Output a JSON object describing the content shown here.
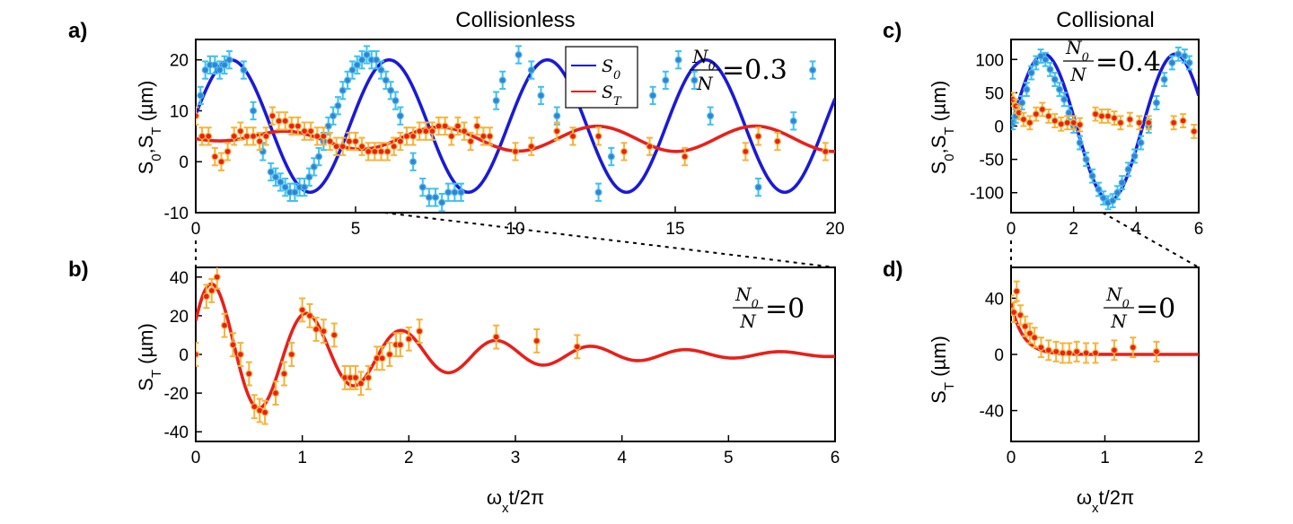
{
  "chart_data": [
    {
      "id": "a",
      "panel_label": "a)",
      "title": "Collisionless",
      "type": "scatter+line",
      "xlim": [
        0,
        20
      ],
      "ylim": [
        -10,
        24
      ],
      "xticks": [
        0,
        5,
        10,
        15,
        20
      ],
      "yticks": [
        -10,
        0,
        10,
        20
      ],
      "ylabel": "S0,ST (µm)",
      "annotation": {
        "lhs_num": "N",
        "lhs_num_sub": "0",
        "lhs_den": "N",
        "value": "=0.3"
      },
      "legend": [
        {
          "name": "S",
          "sub": "0",
          "color": "#1a1ad6"
        },
        {
          "name": "S",
          "sub": "T",
          "color": "#e8201a"
        }
      ],
      "series": [
        {
          "name": "S0 fit",
          "kind": "line",
          "color": "#1a1ad6",
          "model": {
            "type": "cos",
            "center": 7,
            "amplitude": 13,
            "period": 4.95
          }
        },
        {
          "name": "ST fit",
          "kind": "line",
          "color": "#e8201a",
          "model": {
            "type": "growcos",
            "center": 4.5,
            "amplitude": 2.5,
            "period": 4.95,
            "phase": 3.1,
            "rise": 3.0
          }
        },
        {
          "name": "S0 data",
          "kind": "points",
          "fill": "#3a7fd0",
          "err_color": "#3fc0f0",
          "yerr": 1.7,
          "x": [
            0.15,
            0.3,
            0.45,
            0.6,
            0.75,
            0.9,
            1.05,
            1.5,
            1.8,
            2.1,
            2.35,
            2.5,
            2.65,
            2.8,
            2.95,
            3.1,
            3.25,
            3.4,
            3.55,
            3.7,
            3.85,
            4.0,
            4.15,
            4.3,
            4.45,
            4.6,
            4.75,
            4.9,
            5.05,
            5.2,
            5.35,
            5.5,
            5.65,
            5.8,
            5.95,
            6.1,
            6.25,
            6.4,
            6.6,
            6.8,
            7.1,
            7.3,
            7.5,
            7.7,
            7.9,
            8.1,
            8.3,
            9.4,
            9.6,
            10.1,
            10.5,
            10.8,
            11.3,
            12.6,
            13.0,
            14.3,
            14.7,
            15.1,
            15.6,
            16.1,
            17.6,
            18.7,
            19.3
          ],
          "y": [
            13,
            18,
            19,
            19,
            18,
            19,
            20,
            18,
            10,
            2,
            -2,
            -3,
            -4,
            -5,
            -6,
            -6,
            -5,
            -5,
            -3,
            -1,
            1,
            4,
            7,
            9,
            11,
            14,
            16,
            18,
            19,
            20,
            21,
            20,
            20,
            18,
            16,
            14,
            12,
            9,
            5,
            0,
            -5,
            -7,
            -7,
            -8,
            -6,
            -6,
            -6,
            12,
            16,
            21,
            18,
            13,
            9,
            -6,
            1,
            13,
            16,
            20,
            16,
            9,
            -5,
            8,
            18
          ]
        },
        {
          "name": "ST data",
          "kind": "points",
          "fill": "#e8201a",
          "err_color": "#f5b33a",
          "yerr": 1.7,
          "x": [
            0,
            0.2,
            0.4,
            0.6,
            0.8,
            1.0,
            1.2,
            1.4,
            1.6,
            1.8,
            2.0,
            2.2,
            2.4,
            2.6,
            2.8,
            3.0,
            3.2,
            3.4,
            3.6,
            3.8,
            4.0,
            4.2,
            4.4,
            4.6,
            4.8,
            5.0,
            5.2,
            5.4,
            5.6,
            5.8,
            6.0,
            6.2,
            6.4,
            6.6,
            6.8,
            7.0,
            7.2,
            7.4,
            7.6,
            7.8,
            8.0,
            8.2,
            8.4,
            8.6,
            8.8,
            9.0,
            9.2,
            10.0,
            10.5,
            11.3,
            11.8,
            12.6,
            13.4,
            14.2,
            15.3,
            17.2,
            17.6,
            18.2,
            19.7
          ],
          "y": [
            9,
            5,
            5,
            1,
            0,
            2,
            5,
            6,
            5,
            5,
            4,
            5,
            9,
            8,
            8,
            7,
            7,
            6,
            6,
            5,
            5,
            4,
            3,
            3,
            4,
            4,
            3,
            2,
            2,
            2,
            2,
            3,
            4,
            5,
            5,
            6,
            6,
            6,
            7,
            7,
            5,
            7,
            6,
            4,
            7,
            5,
            5,
            2,
            3,
            6,
            5,
            5,
            2,
            3,
            1,
            2,
            5,
            4,
            2
          ]
        }
      ]
    },
    {
      "id": "b",
      "panel_label": "b)",
      "type": "scatter+line",
      "xlim": [
        0,
        6
      ],
      "ylim": [
        -45,
        45
      ],
      "xticks": [
        0,
        1,
        2,
        3,
        4,
        5,
        6
      ],
      "yticks": [
        -40,
        -20,
        0,
        20,
        40
      ],
      "xlabel": "ωxt/2π",
      "ylabel": "ST (µm)",
      "annotation": {
        "lhs_num": "N",
        "lhs_num_sub": "0",
        "lhs_den": "N",
        "value": "=0"
      },
      "series": [
        {
          "name": "ST fit",
          "kind": "line",
          "color": "#e8201a",
          "model": {
            "type": "dampcos",
            "amplitude": 40,
            "decay": 1.65,
            "period": 0.89,
            "phase": 1.18
          }
        },
        {
          "name": "ST data",
          "kind": "points",
          "fill": "#e8201a",
          "err_color": "#f5b33a",
          "yerr": 6,
          "x": [
            0.0,
            0.1,
            0.15,
            0.2,
            0.27,
            0.35,
            0.42,
            0.5,
            0.55,
            0.6,
            0.65,
            0.75,
            0.83,
            0.9,
            1.0,
            1.07,
            1.13,
            1.2,
            1.3,
            1.4,
            1.45,
            1.5,
            1.55,
            1.62,
            1.7,
            1.75,
            1.82,
            1.88,
            1.92,
            2.0,
            2.1,
            2.82,
            3.2,
            3.58
          ],
          "y": [
            0,
            30,
            33,
            40,
            15,
            5,
            0,
            -10,
            -27,
            -29,
            -30,
            -20,
            -10,
            0,
            23,
            20,
            13,
            12,
            10,
            -12,
            -12,
            -12,
            -15,
            -12,
            -2,
            -2,
            0,
            5,
            5,
            8,
            12,
            9,
            7,
            4
          ]
        }
      ]
    },
    {
      "id": "c",
      "panel_label": "c)",
      "title": "Collisional",
      "type": "scatter+line",
      "xlim": [
        0,
        6
      ],
      "ylim": [
        -130,
        130
      ],
      "xticks": [
        0,
        2,
        4,
        6
      ],
      "yticks": [
        -100,
        -50,
        0,
        50,
        100
      ],
      "ylabel": "S0,ST (µm)",
      "annotation": {
        "lhs_num": "N",
        "lhs_num_sub": "0",
        "lhs_den": "N",
        "value": "=0.4"
      },
      "series": [
        {
          "name": "S0 fit",
          "kind": "line",
          "color": "#1a1ad6",
          "model": {
            "type": "cos",
            "center": -2,
            "amplitude": 110,
            "period": 4.2,
            "shift": 1.05,
            "x_from": 0
          }
        },
        {
          "name": "S0 data",
          "kind": "points",
          "fill": "#3a7fd0",
          "err_color": "#3fc0f0",
          "yerr": 10,
          "x": [
            0.05,
            0.15,
            0.25,
            0.35,
            0.5,
            0.65,
            0.8,
            0.95,
            1.1,
            1.25,
            1.4,
            1.55,
            1.7,
            1.85,
            2.0,
            2.2,
            2.4,
            2.6,
            2.8,
            2.95,
            3.1,
            3.25,
            3.4,
            3.55,
            3.75,
            3.95,
            4.15,
            4.4,
            4.65,
            4.9,
            5.15,
            5.35,
            5.55,
            5.7
          ],
          "y": [
            5,
            15,
            20,
            35,
            55,
            80,
            95,
            105,
            100,
            85,
            70,
            55,
            40,
            20,
            0,
            -25,
            -50,
            -75,
            -95,
            -108,
            -115,
            -112,
            -100,
            -85,
            -65,
            -45,
            -25,
            0,
            35,
            70,
            95,
            108,
            105,
            95
          ]
        },
        {
          "name": "ST data",
          "kind": "points",
          "fill": "#e8201a",
          "err_color": "#f5b33a",
          "yerr": 10,
          "x": [
            0.05,
            0.15,
            0.25,
            0.4,
            0.6,
            0.8,
            1.0,
            1.2,
            1.4,
            1.6,
            1.8,
            2.0,
            2.2,
            2.7,
            2.9,
            3.1,
            3.3,
            3.5,
            3.8,
            4.1,
            4.4,
            5.2,
            5.5,
            5.85
          ],
          "y": [
            40,
            30,
            20,
            10,
            5,
            18,
            25,
            15,
            8,
            3,
            5,
            5,
            2,
            18,
            15,
            15,
            12,
            5,
            10,
            5,
            5,
            5,
            8,
            -8
          ]
        }
      ]
    },
    {
      "id": "d",
      "panel_label": "d)",
      "type": "scatter+line",
      "xlim": [
        0,
        2
      ],
      "ylim": [
        -62,
        62
      ],
      "xticks": [
        0,
        1,
        2
      ],
      "yticks": [
        -40,
        0,
        40
      ],
      "xlabel": "ωxt/2π",
      "ylabel": "ST (µm)",
      "annotation": {
        "lhs_num": "N",
        "lhs_num_sub": "0",
        "lhs_den": "N",
        "value": "=0"
      },
      "series": [
        {
          "name": "ST fit",
          "kind": "line",
          "color": "#e8201a",
          "model": {
            "type": "exp",
            "amplitude": 36,
            "tau": 0.13
          }
        },
        {
          "name": "ST data",
          "kind": "points",
          "fill": "#e8201a",
          "err_color": "#f5b33a",
          "yerr": 7,
          "x": [
            0.0,
            0.03,
            0.06,
            0.1,
            0.15,
            0.2,
            0.25,
            0.32,
            0.4,
            0.48,
            0.55,
            0.62,
            0.7,
            0.8,
            0.9,
            1.1,
            1.3,
            1.55
          ],
          "y": [
            35,
            30,
            45,
            28,
            20,
            15,
            12,
            5,
            3,
            2,
            1,
            1,
            2,
            1,
            1,
            3,
            5,
            2
          ]
        }
      ]
    }
  ],
  "axis_labels": {
    "s0st": [
      "S",
      "0",
      ",S",
      "T",
      " (µm)"
    ],
    "st": [
      "S",
      "T",
      " (µm)"
    ],
    "time": [
      "ω",
      "x",
      "t/2π"
    ]
  }
}
